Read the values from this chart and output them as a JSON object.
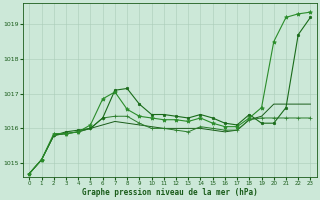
{
  "background_color": "#cce8d8",
  "grid_color": "#aaccb8",
  "text_color": "#1a5c1a",
  "xlabel": "Graphe pression niveau de la mer (hPa)",
  "xlim": [
    -0.5,
    23.5
  ],
  "ylim": [
    1014.6,
    1019.6
  ],
  "yticks": [
    1015,
    1016,
    1017,
    1018,
    1019
  ],
  "xticks": [
    0,
    1,
    2,
    3,
    4,
    5,
    6,
    7,
    8,
    9,
    10,
    11,
    12,
    13,
    14,
    15,
    16,
    17,
    18,
    19,
    20,
    21,
    22,
    23
  ],
  "line1": {
    "x": [
      0,
      1,
      2,
      3,
      4,
      5,
      6,
      7,
      8,
      9,
      10,
      11,
      12,
      13,
      14,
      15,
      16,
      17,
      18,
      19,
      20,
      21,
      22,
      23
    ],
    "y": [
      1014.7,
      1015.1,
      1015.8,
      1015.9,
      1015.95,
      1016.0,
      1016.3,
      1017.1,
      1017.15,
      1016.7,
      1016.4,
      1016.4,
      1016.35,
      1016.3,
      1016.4,
      1016.3,
      1016.15,
      1016.1,
      1016.4,
      1016.15,
      1016.15,
      1016.6,
      1018.7,
      1019.2
    ],
    "color": "#1a6b1a",
    "marker": "o",
    "markersize": 1.8,
    "linewidth": 0.8
  },
  "line2": {
    "x": [
      0,
      1,
      2,
      3,
      4,
      5,
      6,
      7,
      8,
      9,
      10,
      11,
      12,
      13,
      14,
      15,
      16,
      17,
      18,
      19,
      20,
      21,
      22,
      23
    ],
    "y": [
      1014.7,
      1015.1,
      1015.85,
      1015.85,
      1015.9,
      1016.1,
      1016.85,
      1017.05,
      1016.55,
      1016.35,
      1016.3,
      1016.25,
      1016.25,
      1016.2,
      1016.3,
      1016.15,
      1016.05,
      1016.05,
      1016.3,
      1016.6,
      1018.5,
      1019.2,
      1019.3,
      1019.35
    ],
    "color": "#2a8c2a",
    "marker": "*",
    "markersize": 3.0,
    "linewidth": 0.8
  },
  "line3": {
    "x": [
      0,
      1,
      2,
      3,
      4,
      5,
      6,
      7,
      8,
      9,
      10,
      11,
      12,
      13,
      14,
      15,
      16,
      17,
      18,
      19,
      20,
      21,
      22,
      23
    ],
    "y": [
      1014.7,
      1015.1,
      1015.8,
      1015.85,
      1015.9,
      1016.0,
      1016.3,
      1016.35,
      1016.35,
      1016.15,
      1016.0,
      1016.0,
      1015.95,
      1015.9,
      1016.05,
      1016.0,
      1015.95,
      1015.95,
      1016.25,
      1016.3,
      1016.3,
      1016.3,
      1016.3,
      1016.3
    ],
    "color": "#2a7c2a",
    "marker": "+",
    "markersize": 3.0,
    "linewidth": 0.7
  },
  "line4": {
    "x": [
      0,
      1,
      2,
      3,
      4,
      5,
      6,
      7,
      8,
      9,
      10,
      11,
      12,
      13,
      14,
      15,
      16,
      17,
      18,
      19,
      20,
      21,
      22,
      23
    ],
    "y": [
      1014.7,
      1015.1,
      1015.8,
      1015.85,
      1015.9,
      1016.0,
      1016.1,
      1016.2,
      1016.15,
      1016.1,
      1016.05,
      1016.0,
      1016.0,
      1016.0,
      1016.0,
      1015.95,
      1015.9,
      1015.95,
      1016.25,
      1016.35,
      1016.7,
      1016.7,
      1016.7,
      1016.7
    ],
    "color": "#1a5c1a",
    "marker": null,
    "markersize": 0,
    "linewidth": 0.7
  }
}
